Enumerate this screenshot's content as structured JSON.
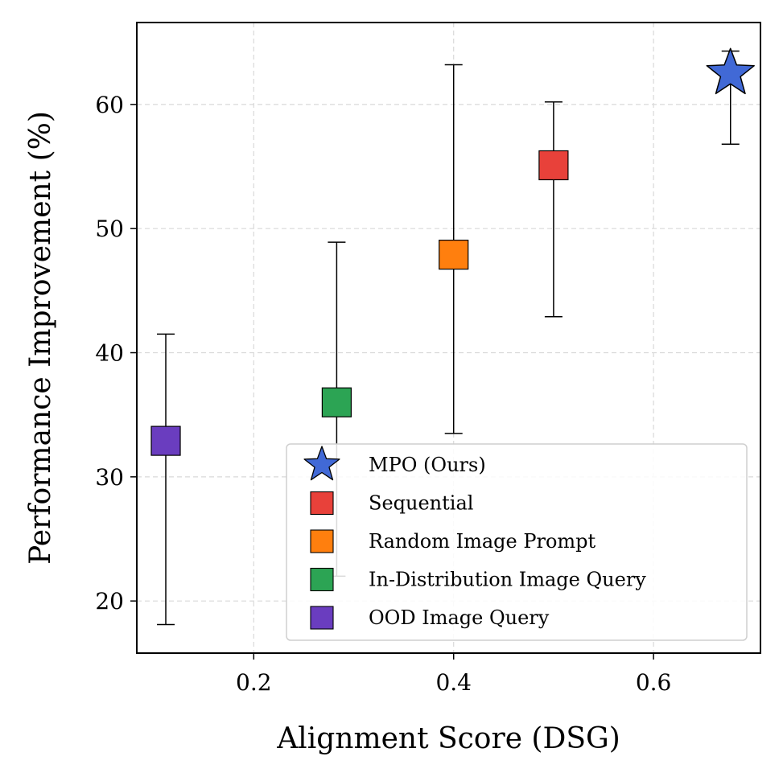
{
  "chart_data": {
    "type": "scatter",
    "title": "",
    "xlabel": "Alignment Score (DSG)",
    "ylabel": "Performance Improvement (%)",
    "xlim": [
      0.083,
      0.707
    ],
    "ylim": [
      15.8,
      66.6
    ],
    "xticks": [
      0.2,
      0.4,
      0.6
    ],
    "xtick_labels": [
      "0.2",
      "0.4",
      "0.6"
    ],
    "yticks": [
      20,
      30,
      40,
      50,
      60
    ],
    "ytick_labels": [
      "20",
      "30",
      "40",
      "50",
      "60"
    ],
    "grid": true,
    "legend_position": "lower-right",
    "series": [
      {
        "name": "MPO (Ours)",
        "marker": "star",
        "color": "#4169d6",
        "x": 0.677,
        "y": 62.5,
        "err_low": 56.8,
        "err_high": 64.3
      },
      {
        "name": "Sequential",
        "marker": "square",
        "color": "#e8413a",
        "x": 0.5,
        "y": 55.1,
        "err_low": 42.9,
        "err_high": 60.2
      },
      {
        "name": "Random Image Prompt",
        "marker": "square",
        "color": "#ff7f0e",
        "x": 0.4,
        "y": 47.9,
        "err_low": 33.5,
        "err_high": 63.2
      },
      {
        "name": "In-Distribution Image Query",
        "marker": "square",
        "color": "#2ca454",
        "x": 0.283,
        "y": 36.0,
        "err_low": 22.0,
        "err_high": 48.9
      },
      {
        "name": "OOD Image Query",
        "marker": "square",
        "color": "#6a3dbf",
        "x": 0.112,
        "y": 32.9,
        "err_low": 18.1,
        "err_high": 41.5
      }
    ]
  }
}
